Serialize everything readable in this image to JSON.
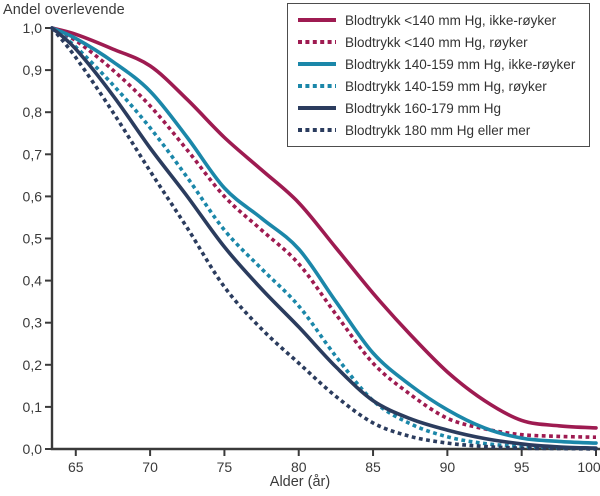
{
  "title": "Andel overlevende",
  "chart_data": {
    "type": "line",
    "title": "Andel overlevende",
    "xlabel": "Alder (år)",
    "ylabel": "Andel overlevende",
    "xlim": [
      63.4,
      100
    ],
    "ylim": [
      0.0,
      1.0
    ],
    "x_ticks": [
      65,
      70,
      75,
      80,
      85,
      90,
      95,
      100
    ],
    "y_tick_step": 0.1,
    "decimal_separator": ",",
    "grid": false,
    "legend_position": "top-right",
    "axis_color": "#3a3a3a",
    "x": [
      63.4,
      65,
      67.5,
      70,
      72.5,
      75,
      77.5,
      80,
      82.5,
      85,
      87.5,
      90,
      92.5,
      95,
      97.5,
      100
    ],
    "series": [
      {
        "name": "Blodtrykk <140 mm Hg, ikke-røyker",
        "color": "#9e1b51",
        "style": "solid",
        "values": [
          1.0,
          0.985,
          0.95,
          0.91,
          0.83,
          0.74,
          0.663,
          0.585,
          0.478,
          0.37,
          0.272,
          0.183,
          0.115,
          0.068,
          0.055,
          0.05
        ]
      },
      {
        "name": "Blodtrykk <140 mm Hg, røyker",
        "color": "#9e1b51",
        "style": "dotted",
        "values": [
          1.0,
          0.97,
          0.9,
          0.815,
          0.71,
          0.6,
          0.52,
          0.44,
          0.32,
          0.204,
          0.13,
          0.073,
          0.048,
          0.034,
          0.03,
          0.028
        ]
      },
      {
        "name": "Blodtrykk 140-159 mm Hg, ikke-røyker",
        "color": "#1b87a9",
        "style": "solid",
        "values": [
          1.0,
          0.975,
          0.92,
          0.85,
          0.74,
          0.62,
          0.548,
          0.475,
          0.35,
          0.228,
          0.152,
          0.093,
          0.05,
          0.026,
          0.018,
          0.014
        ]
      },
      {
        "name": "Blodtrykk 140-159 mm Hg, røyker",
        "color": "#1b87a9",
        "style": "dotted",
        "values": [
          1.0,
          0.955,
          0.865,
          0.763,
          0.645,
          0.52,
          0.428,
          0.34,
          0.22,
          0.115,
          0.06,
          0.029,
          0.013,
          0.006,
          0.003,
          0.002
        ]
      },
      {
        "name": "Blodtrykk 160-179 mm Hg",
        "color": "#2b3c5e",
        "style": "solid",
        "values": [
          1.0,
          0.95,
          0.84,
          0.715,
          0.6,
          0.48,
          0.38,
          0.29,
          0.195,
          0.115,
          0.072,
          0.045,
          0.025,
          0.012,
          0.005,
          0.002
        ]
      },
      {
        "name": "Blodtrykk 180 mm Hg eller mer",
        "color": "#2b3c5e",
        "style": "dotted",
        "values": [
          1.0,
          0.93,
          0.8,
          0.66,
          0.525,
          0.385,
          0.285,
          0.204,
          0.125,
          0.062,
          0.03,
          0.014,
          0.006,
          0.002,
          0.001,
          0.0
        ]
      }
    ]
  }
}
